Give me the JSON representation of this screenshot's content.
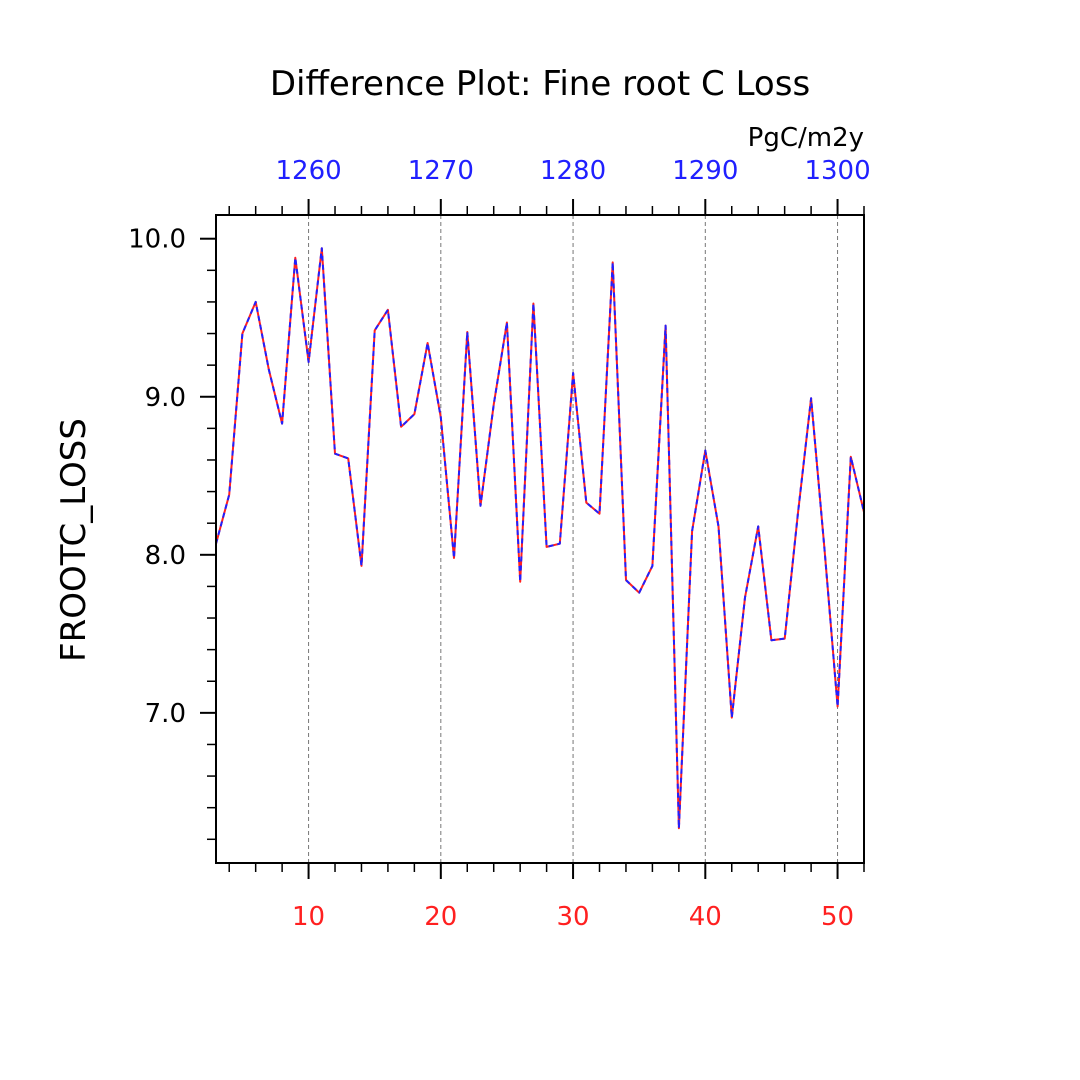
{
  "chart_data": {
    "type": "line",
    "title": "Difference Plot: Fine root C Loss",
    "units": "PgC/m2y",
    "ylabel": "FROOTC_LOSS",
    "xlabel": "",
    "xlim": [
      3,
      52
    ],
    "ylim": [
      6.05,
      10.15
    ],
    "x_ticks": [
      10,
      20,
      30,
      40,
      50
    ],
    "x_tick_labels": [
      "10",
      "20",
      "30",
      "40",
      "50"
    ],
    "x_tick_color": "#ff2020",
    "top_axis": {
      "offset": 1250,
      "ticks": [
        1260,
        1270,
        1280,
        1290,
        1300
      ],
      "tick_labels": [
        "1260",
        "1270",
        "1280",
        "1290",
        "1300"
      ],
      "color": "#2020ff"
    },
    "y_ticks": [
      10.0,
      9.0,
      8.0,
      7.0
    ],
    "y_tick_labels": [
      "10.0",
      "9.0",
      "8.0",
      "7.0"
    ],
    "grid": "vertical-dashed",
    "series": [
      {
        "name": "red",
        "color": "#ff2020",
        "dash": "solid",
        "x": [
          3,
          4,
          5,
          6,
          7,
          8,
          9,
          10,
          11,
          12,
          13,
          14,
          15,
          16,
          17,
          18,
          19,
          20,
          21,
          22,
          23,
          24,
          25,
          26,
          27,
          28,
          29,
          30,
          31,
          32,
          33,
          34,
          35,
          36,
          37,
          38,
          39,
          40,
          41,
          42,
          43,
          44,
          45,
          46,
          47,
          48,
          49,
          50,
          51,
          52
        ],
        "values": [
          8.07,
          8.38,
          9.4,
          9.6,
          9.17,
          8.83,
          9.88,
          9.22,
          9.94,
          8.64,
          8.61,
          7.93,
          9.42,
          9.55,
          8.81,
          8.89,
          9.34,
          8.87,
          7.98,
          9.41,
          8.31,
          8.95,
          9.47,
          7.83,
          9.59,
          8.05,
          8.07,
          9.15,
          8.33,
          8.26,
          9.85,
          7.84,
          7.76,
          7.93,
          9.45,
          6.27,
          8.15,
          8.66,
          8.18,
          6.97,
          7.73,
          8.18,
          7.46,
          7.47,
          8.26,
          8.99,
          8.05,
          7.04,
          8.62,
          8.27
        ]
      },
      {
        "name": "blue",
        "color": "#2020ff",
        "dash": "dashed",
        "x": [
          3,
          4,
          5,
          6,
          7,
          8,
          9,
          10,
          11,
          12,
          13,
          14,
          15,
          16,
          17,
          18,
          19,
          20,
          21,
          22,
          23,
          24,
          25,
          26,
          27,
          28,
          29,
          30,
          31,
          32,
          33,
          34,
          35,
          36,
          37,
          38,
          39,
          40,
          41,
          42,
          43,
          44,
          45,
          46,
          47,
          48,
          49,
          50,
          51,
          52
        ],
        "values": [
          8.07,
          8.38,
          9.4,
          9.6,
          9.17,
          8.83,
          9.88,
          9.22,
          9.94,
          8.64,
          8.61,
          7.93,
          9.42,
          9.55,
          8.81,
          8.89,
          9.34,
          8.87,
          7.98,
          9.41,
          8.31,
          8.95,
          9.47,
          7.83,
          9.59,
          8.05,
          8.07,
          9.15,
          8.33,
          8.26,
          9.85,
          7.84,
          7.76,
          7.93,
          9.45,
          6.27,
          8.15,
          8.66,
          8.18,
          6.97,
          7.73,
          8.18,
          7.46,
          7.47,
          8.26,
          8.99,
          8.05,
          7.04,
          8.62,
          8.27
        ]
      }
    ]
  }
}
